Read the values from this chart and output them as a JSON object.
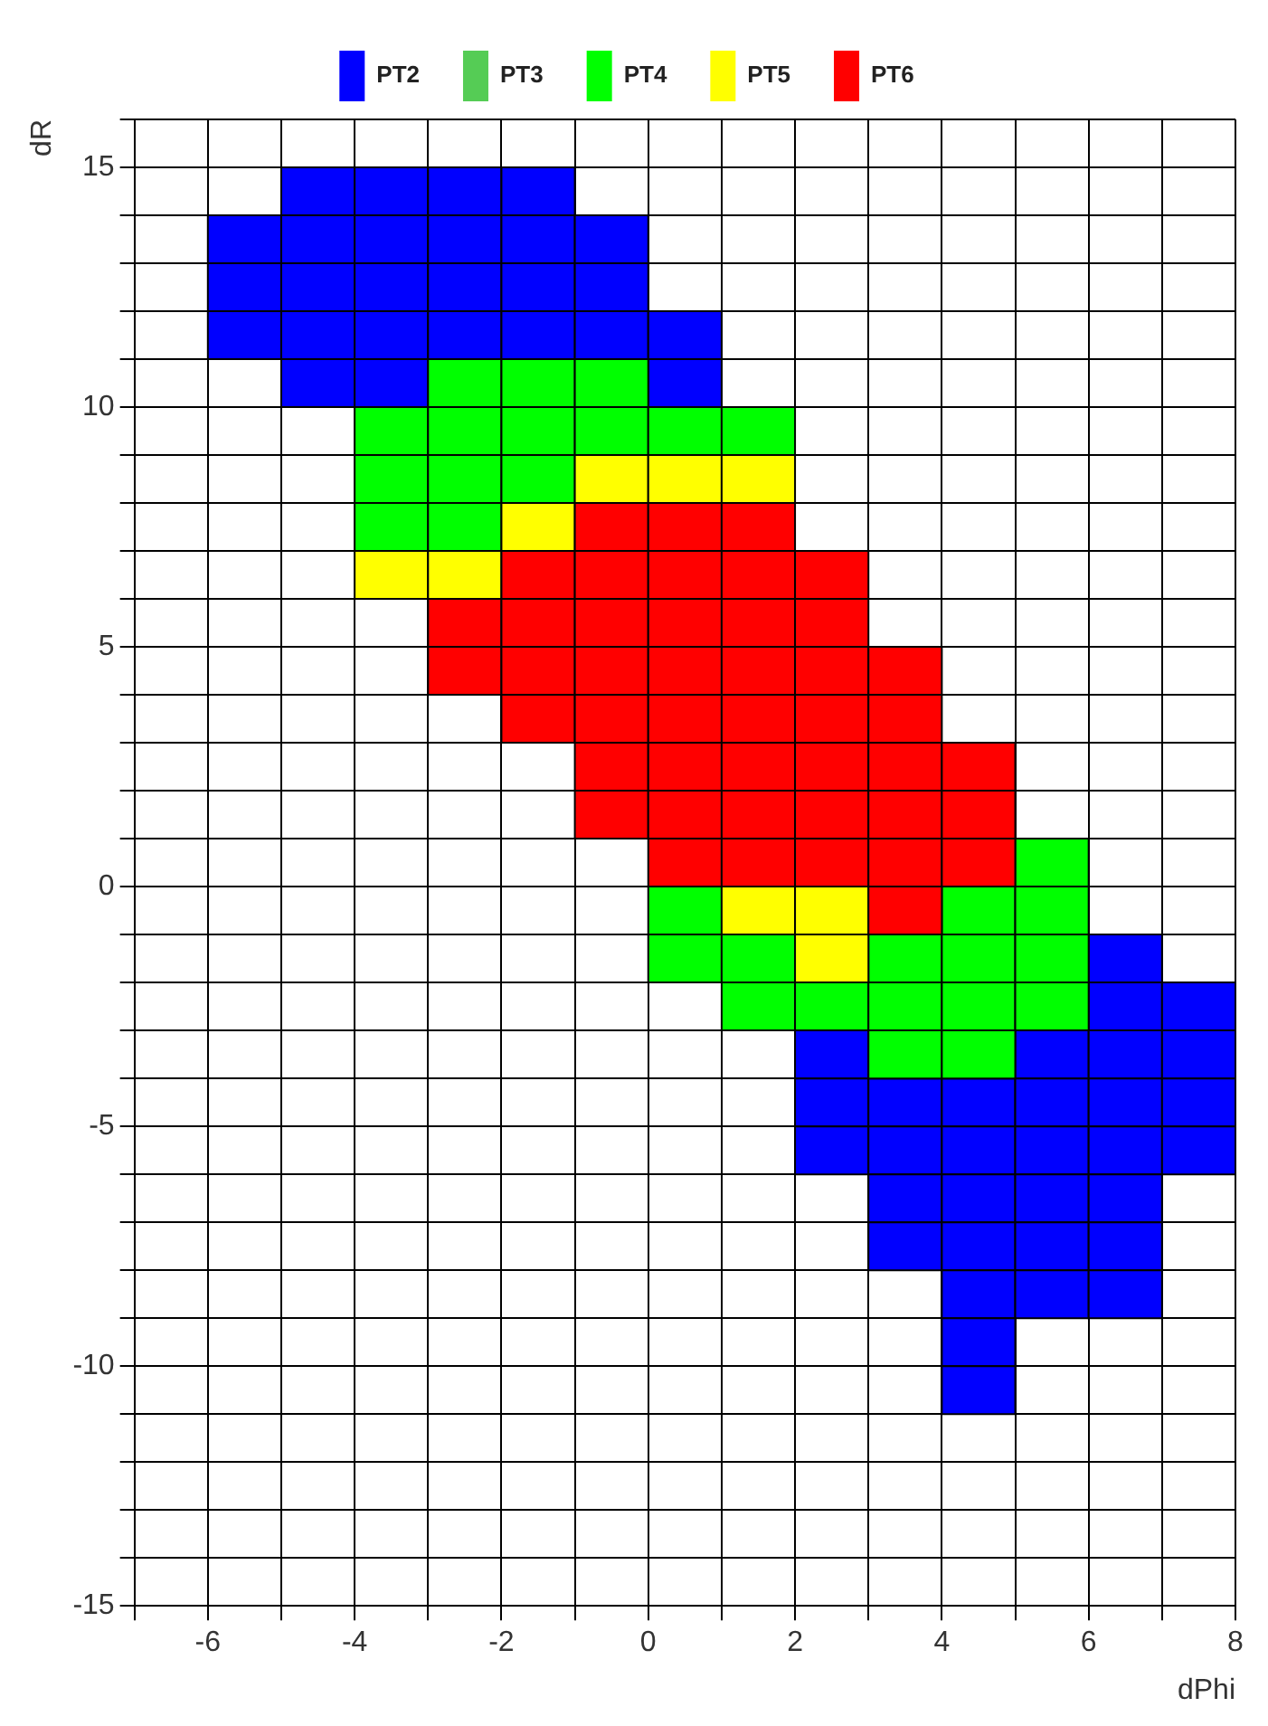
{
  "chart_data": {
    "type": "scatter",
    "xlabel": "dPhi",
    "ylabel": "dR",
    "marker": "square",
    "grid": true,
    "legend": "top",
    "xlim": [
      -7,
      8
    ],
    "ylim": [
      -15,
      16
    ],
    "xticks": [
      {
        "value": -7,
        "label": null
      },
      -6,
      {
        "value": -5,
        "label": null
      },
      -4,
      {
        "value": -3,
        "label": null
      },
      -2,
      {
        "value": -1,
        "label": null
      },
      0,
      {
        "value": 1,
        "label": null
      },
      2,
      {
        "value": 3,
        "label": null
      },
      4,
      {
        "value": 5,
        "label": null
      },
      6,
      {
        "value": 7,
        "label": null
      },
      8
    ],
    "yticks": [
      -15,
      {
        "value": -14,
        "label": null
      },
      {
        "value": -13,
        "label": null
      },
      {
        "value": -12,
        "label": null
      },
      {
        "value": -11,
        "label": null
      },
      -10,
      {
        "value": -9,
        "label": null
      },
      {
        "value": -8,
        "label": null
      },
      {
        "value": -7,
        "label": null
      },
      {
        "value": -6,
        "label": null
      },
      -5,
      {
        "value": -4,
        "label": null
      },
      {
        "value": -3,
        "label": null
      },
      {
        "value": -2,
        "label": null
      },
      {
        "value": -1,
        "label": null
      },
      0,
      {
        "value": 1,
        "label": null
      },
      {
        "value": 2,
        "label": null
      },
      {
        "value": 3,
        "label": null
      },
      {
        "value": 4,
        "label": null
      },
      5,
      {
        "value": 6,
        "label": null
      },
      {
        "value": 7,
        "label": null
      },
      {
        "value": 8,
        "label": null
      },
      {
        "value": 9,
        "label": null
      },
      10,
      {
        "value": 11,
        "label": null
      },
      {
        "value": 12,
        "label": null
      },
      {
        "value": 13,
        "label": null
      },
      {
        "value": 14,
        "label": null
      },
      15,
      {
        "value": 16,
        "label": null
      }
    ],
    "series": [
      {
        "name": "PT2",
        "color": "#0000ff",
        "x": [
          -4.5,
          -3.5,
          -2.5,
          -1.5,
          -5.5,
          -4.5,
          -3.5,
          -2.5,
          -1.5,
          -0.5,
          -5.5,
          -4.5,
          -3.5,
          -2.5,
          -1.5,
          -0.5,
          -5.5,
          -4.5,
          -3.5,
          -2.5,
          -1.5,
          -0.5,
          0.5,
          -4.5,
          -3.5,
          0.5,
          6.5,
          6.5,
          7.5,
          2.5,
          5.5,
          6.5,
          7.5,
          2.5,
          3.5,
          4.5,
          5.5,
          6.5,
          7.5,
          2.5,
          3.5,
          4.5,
          5.5,
          6.5,
          7.5,
          3.5,
          4.5,
          5.5,
          6.5,
          3.5,
          4.5,
          5.5,
          6.5,
          4.5,
          5.5,
          6.5,
          4.5,
          4.5
        ],
        "values": [
          14.5,
          14.5,
          14.5,
          14.5,
          13.5,
          13.5,
          13.5,
          13.5,
          13.5,
          13.5,
          12.5,
          12.5,
          12.5,
          12.5,
          12.5,
          12.5,
          11.5,
          11.5,
          11.5,
          11.5,
          11.5,
          11.5,
          11.5,
          10.5,
          10.5,
          10.5,
          -1.5,
          -2.5,
          -2.5,
          -3.5,
          -3.5,
          -3.5,
          -3.5,
          -4.5,
          -4.5,
          -4.5,
          -4.5,
          -4.5,
          -4.5,
          -5.5,
          -5.5,
          -5.5,
          -5.5,
          -5.5,
          -5.5,
          -6.5,
          -6.5,
          -6.5,
          -6.5,
          -7.5,
          -7.5,
          -7.5,
          -7.5,
          -8.5,
          -8.5,
          -8.5,
          -9.5,
          -10.5
        ]
      },
      {
        "name": "PT3",
        "color": "#55cc55"
      },
      {
        "name": "PT4",
        "color": "#00ff00",
        "x": [
          -2.5,
          -1.5,
          -0.5,
          -3.5,
          -2.5,
          -1.5,
          -0.5,
          0.5,
          1.5,
          -3.5,
          -2.5,
          -1.5,
          -3.5,
          -2.5,
          5.5,
          0.5,
          4.5,
          5.5,
          0.5,
          1.5,
          3.5,
          4.5,
          5.5,
          1.5,
          2.5,
          3.5,
          4.5,
          5.5,
          3.5,
          4.5
        ],
        "values": [
          10.5,
          10.5,
          10.5,
          9.5,
          9.5,
          9.5,
          9.5,
          9.5,
          9.5,
          8.5,
          8.5,
          8.5,
          7.5,
          7.5,
          0.5,
          -0.5,
          -0.5,
          -0.5,
          -1.5,
          -1.5,
          -1.5,
          -1.5,
          -1.5,
          -2.5,
          -2.5,
          -2.5,
          -2.5,
          -2.5,
          -3.5,
          -3.5
        ]
      },
      {
        "name": "PT5",
        "color": "#ffff00",
        "x": [
          -0.5,
          0.5,
          1.5,
          -1.5,
          -3.5,
          -2.5,
          1.5,
          2.5,
          2.5
        ],
        "values": [
          8.5,
          8.5,
          8.5,
          7.5,
          6.5,
          6.5,
          -0.5,
          -0.5,
          -1.5
        ]
      },
      {
        "name": "PT6",
        "color": "#ff0000",
        "x": [
          -0.5,
          0.5,
          1.5,
          -1.5,
          -0.5,
          0.5,
          1.5,
          2.5,
          -2.5,
          -1.5,
          -0.5,
          0.5,
          1.5,
          2.5,
          -2.5,
          -1.5,
          -0.5,
          0.5,
          1.5,
          2.5,
          3.5,
          -1.5,
          -0.5,
          0.5,
          1.5,
          2.5,
          3.5,
          -0.5,
          0.5,
          1.5,
          2.5,
          3.5,
          4.5,
          -0.5,
          0.5,
          1.5,
          2.5,
          3.5,
          4.5,
          0.5,
          1.5,
          2.5,
          3.5,
          4.5,
          3.5
        ],
        "values": [
          7.5,
          7.5,
          7.5,
          6.5,
          6.5,
          6.5,
          6.5,
          6.5,
          5.5,
          5.5,
          5.5,
          5.5,
          5.5,
          5.5,
          4.5,
          4.5,
          4.5,
          4.5,
          4.5,
          4.5,
          4.5,
          3.5,
          3.5,
          3.5,
          3.5,
          3.5,
          3.5,
          2.5,
          2.5,
          2.5,
          2.5,
          2.5,
          2.5,
          1.5,
          1.5,
          1.5,
          1.5,
          1.5,
          1.5,
          0.5,
          0.5,
          0.5,
          0.5,
          0.5,
          -0.5
        ]
      }
    ]
  }
}
